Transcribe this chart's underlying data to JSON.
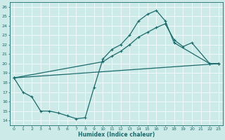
{
  "xlabel": "Humidex (Indice chaleur)",
  "xlim": [
    -0.5,
    23.5
  ],
  "ylim": [
    13.5,
    26.5
  ],
  "xticks": [
    0,
    1,
    2,
    3,
    4,
    5,
    6,
    7,
    8,
    9,
    10,
    11,
    12,
    13,
    14,
    15,
    16,
    17,
    18,
    19,
    20,
    21,
    22,
    23
  ],
  "yticks": [
    14,
    15,
    16,
    17,
    18,
    19,
    20,
    21,
    22,
    23,
    24,
    25,
    26
  ],
  "color": "#1a6b6b",
  "bg_color": "#cceae8",
  "curve1_x": [
    0,
    1,
    2,
    3,
    4,
    5,
    6,
    7,
    8,
    9,
    10,
    11,
    12,
    13,
    14,
    15,
    16,
    17,
    18,
    22,
    23
  ],
  "curve1_y": [
    18.5,
    17.0,
    16.5,
    15.0,
    15.0,
    14.8,
    14.5,
    14.2,
    14.3,
    17.5,
    20.5,
    21.5,
    22.0,
    23.0,
    24.5,
    25.2,
    25.6,
    24.5,
    22.2,
    20.0,
    20.0
  ],
  "curve2_x": [
    0,
    10,
    11,
    12,
    13,
    14,
    15,
    16,
    17,
    18,
    19,
    20,
    22,
    23
  ],
  "curve2_y": [
    18.5,
    20.2,
    20.8,
    21.3,
    22.0,
    22.8,
    23.3,
    23.8,
    24.2,
    22.5,
    21.8,
    22.2,
    20.0,
    20.0
  ],
  "line3_x": [
    0,
    23
  ],
  "line3_y": [
    18.5,
    20.0
  ]
}
